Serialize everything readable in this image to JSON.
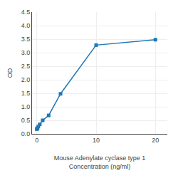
{
  "chart_data": {
    "type": "line",
    "x": [
      0,
      0.0625,
      0.125,
      0.25,
      0.5,
      1,
      2,
      4,
      10,
      20
    ],
    "values": [
      0.175,
      0.19,
      0.21,
      0.27,
      0.35,
      0.5,
      0.68,
      1.48,
      3.28,
      3.48
    ],
    "marker": "square",
    "xlabel": "Mouse Adenylate cyclase type 1\nConcentration (ng/ml)",
    "ylabel": "OD",
    "xlim": [
      -0.8,
      22
    ],
    "ylim": [
      0,
      4.5
    ],
    "xticks": [
      0,
      10,
      20
    ],
    "yticks": [
      {
        "value": 0,
        "label": "0.0"
      },
      0.5,
      {
        "value": 1.0,
        "label": "1.0"
      },
      1.5,
      {
        "value": 2.0,
        "label": "2.0"
      },
      2.5,
      {
        "value": 3.0,
        "label": "3.0"
      },
      3.5,
      {
        "value": 4.0,
        "label": "4.0"
      },
      4.5
    ],
    "grid": true
  }
}
